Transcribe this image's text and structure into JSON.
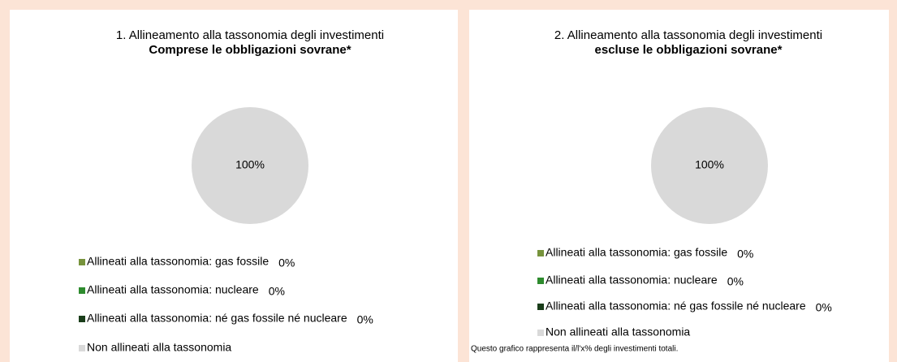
{
  "chart_data": [
    {
      "type": "pie",
      "title": "1. Allineamento alla tassonomia degli investimenti",
      "subtitle": "Comprese le obbligazioni sovrane*",
      "categories": [
        "Allineati alla tassonomia: gas fossile",
        "Allineati alla tassonomia: nucleare",
        "Allineati alla tassonomia: né gas fossile né nucleare",
        "Non allineati alla tassonomia"
      ],
      "values": [
        0,
        0,
        0,
        100
      ],
      "value_labels": [
        "0%",
        "0%",
        "0%",
        "100%"
      ],
      "colors": [
        "#77933c",
        "#2e8b2e",
        "#1a3d1a",
        "#d9d9d9"
      ]
    },
    {
      "type": "pie",
      "title": "2. Allineamento alla tassonomia degli investimenti",
      "subtitle": "escluse le obbligazioni sovrane*",
      "categories": [
        "Allineati alla tassonomia: gas fossile",
        "Allineati alla tassonomia: nucleare",
        "Allineati alla tassonomia: né gas fossile né nucleare",
        "Non allineati alla tassonomia"
      ],
      "values": [
        0,
        0,
        0,
        100
      ],
      "value_labels": [
        "0%",
        "0%",
        "0%",
        "100%"
      ],
      "colors": [
        "#77933c",
        "#2e8b2e",
        "#1a3d1a",
        "#d9d9d9"
      ],
      "note": "Questo grafico rappresenta il/l'x% degli investimenti totali."
    }
  ]
}
